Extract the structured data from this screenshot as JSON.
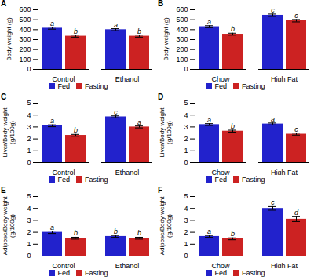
{
  "chart_data": [
    {
      "type": "bar",
      "title": "A",
      "ylabel": "Body weight (g)",
      "categories": [
        "Control",
        "Ethanol"
      ],
      "series": [
        {
          "name": "Fed",
          "color": "#2222CC",
          "values": [
            415,
            400
          ],
          "errors": [
            10,
            10
          ],
          "annotations": [
            "a",
            "a"
          ]
        },
        {
          "name": "Fasting",
          "color": "#CC2222",
          "values": [
            335,
            335
          ],
          "errors": [
            10,
            10
          ],
          "annotations": [
            "b",
            "b"
          ]
        }
      ],
      "ylim": [
        0,
        600
      ],
      "yticks": [
        0,
        100,
        200,
        300,
        400,
        500,
        600
      ],
      "grid": false,
      "legend": "bottom"
    },
    {
      "type": "bar",
      "title": "B",
      "ylabel": "Body weight (g)",
      "categories": [
        "Chow",
        "High Fat"
      ],
      "series": [
        {
          "name": "Fed",
          "color": "#2222CC",
          "values": [
            430,
            545
          ],
          "errors": [
            10,
            12
          ],
          "annotations": [
            "a",
            "c"
          ]
        },
        {
          "name": "Fasting",
          "color": "#CC2222",
          "values": [
            355,
            490
          ],
          "errors": [
            10,
            12
          ],
          "annotations": [
            "b",
            "c"
          ]
        }
      ],
      "ylim": [
        0,
        600
      ],
      "yticks": [
        0,
        100,
        200,
        300,
        400,
        500,
        600
      ],
      "grid": false,
      "legend": "bottom"
    },
    {
      "type": "bar",
      "title": "C",
      "ylabel": "Liver/Body weight\n(g/100g)",
      "categories": [
        "Control",
        "Ethanol"
      ],
      "series": [
        {
          "name": "Fed",
          "color": "#2222CC",
          "values": [
            3.1,
            3.85
          ],
          "errors": [
            0.08,
            0.08
          ],
          "annotations": [
            "a",
            "c"
          ]
        },
        {
          "name": "Fasting",
          "color": "#CC2222",
          "values": [
            2.3,
            3.0
          ],
          "errors": [
            0.08,
            0.08
          ],
          "annotations": [
            "b",
            "a"
          ]
        }
      ],
      "ylim": [
        0,
        5
      ],
      "yticks": [
        0,
        1,
        2,
        3,
        4,
        5
      ],
      "grid": false,
      "legend": "bottom"
    },
    {
      "type": "bar",
      "title": "D",
      "ylabel": "Liver/Body weight\n(g/100g)",
      "categories": [
        "Chow",
        "High Fat"
      ],
      "series": [
        {
          "name": "Fed",
          "color": "#2222CC",
          "values": [
            3.2,
            3.25
          ],
          "errors": [
            0.08,
            0.08
          ],
          "annotations": [
            "a",
            "a"
          ]
        },
        {
          "name": "Fasting",
          "color": "#CC2222",
          "values": [
            2.65,
            2.4
          ],
          "errors": [
            0.08,
            0.08
          ],
          "annotations": [
            "b",
            "c"
          ]
        }
      ],
      "ylim": [
        0,
        5
      ],
      "yticks": [
        0,
        1,
        2,
        3,
        4,
        5
      ],
      "grid": false,
      "legend": "bottom"
    },
    {
      "type": "bar",
      "title": "E",
      "ylabel": "Adipose/Body weight\n(g/100g)",
      "categories": [
        "Control",
        "Ethanol"
      ],
      "series": [
        {
          "name": "Fed",
          "color": "#2222CC",
          "values": [
            2.0,
            1.65
          ],
          "errors": [
            0.1,
            0.08
          ],
          "annotations": [
            "a",
            "b"
          ]
        },
        {
          "name": "Fasting",
          "color": "#CC2222",
          "values": [
            1.5,
            1.5
          ],
          "errors": [
            0.08,
            0.08
          ],
          "annotations": [
            "b",
            "b"
          ]
        }
      ],
      "ylim": [
        0,
        5
      ],
      "yticks": [
        0,
        1,
        2,
        3,
        4,
        5
      ],
      "grid": false,
      "legend": "bottom"
    },
    {
      "type": "bar",
      "title": "F",
      "ylabel": "Adipose/Body weight\n(g/100g)",
      "categories": [
        "Chow",
        "High Fat"
      ],
      "series": [
        {
          "name": "Fed",
          "color": "#2222CC",
          "values": [
            1.65,
            4.0
          ],
          "errors": [
            0.08,
            0.15
          ],
          "annotations": [
            "a",
            "c"
          ]
        },
        {
          "name": "Fasting",
          "color": "#CC2222",
          "values": [
            1.45,
            3.1
          ],
          "errors": [
            0.08,
            0.2
          ],
          "annotations": [
            "b",
            "d"
          ]
        }
      ],
      "ylim": [
        0,
        5
      ],
      "yticks": [
        0,
        1,
        2,
        3,
        4,
        5
      ],
      "grid": false,
      "legend": "bottom"
    }
  ]
}
